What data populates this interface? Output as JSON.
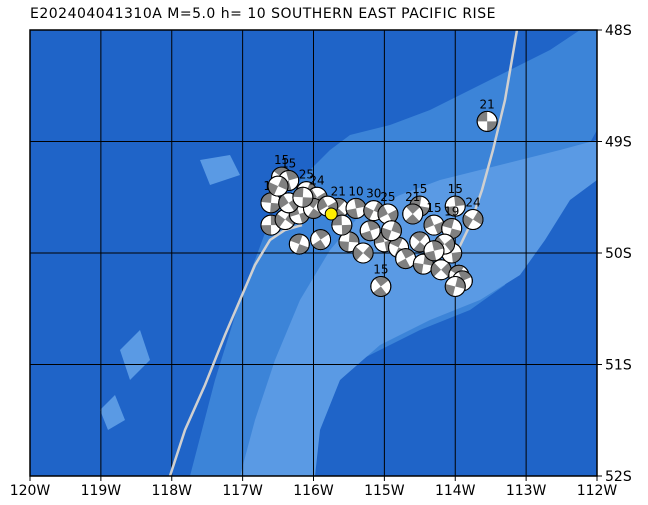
{
  "title": "E202404041310A M=5.0 h= 10 SOUTHERN EAST PACIFIC RISE",
  "map": {
    "lon_range": [
      -120,
      -112
    ],
    "lat_range": [
      -52,
      -48
    ],
    "x_ticks": [
      "120W",
      "119W",
      "118W",
      "117W",
      "116W",
      "115W",
      "114W",
      "113W",
      "112W"
    ],
    "y_ticks": [
      "48S",
      "49S",
      "50S",
      "51S",
      "52S"
    ],
    "colors": {
      "deep_ocean": "#1f64c8",
      "ridge": "#3c84d8",
      "crest": "#5a9ae4",
      "grid": "#000000",
      "plate_boundary": "#d0d0d0",
      "mechanism_dark": "#808080",
      "mechanism_light": "#ffffff",
      "epicenter": "#ffee00"
    }
  },
  "event": {
    "lon": -115.75,
    "lat": -49.65
  },
  "mechanisms": [
    {
      "lon": -113.55,
      "lat": -48.82,
      "label": "21"
    },
    {
      "lon": -116.45,
      "lat": -49.32,
      "label": "15"
    },
    {
      "lon": -116.35,
      "lat": -49.35,
      "label": "15"
    },
    {
      "lon": -116.1,
      "lat": -49.45,
      "label": "25"
    },
    {
      "lon": -115.95,
      "lat": -49.5,
      "label": "24"
    },
    {
      "lon": -116.6,
      "lat": -49.55,
      "label": "13"
    },
    {
      "lon": -115.65,
      "lat": -49.6,
      "label": "21"
    },
    {
      "lon": -115.4,
      "lat": -49.6,
      "label": "10"
    },
    {
      "lon": -115.15,
      "lat": -49.62,
      "label": "30"
    },
    {
      "lon": -114.95,
      "lat": -49.65,
      "label": "25"
    },
    {
      "lon": -114.5,
      "lat": -49.58,
      "label": "15"
    },
    {
      "lon": -114.6,
      "lat": -49.65,
      "label": "21"
    },
    {
      "lon": -114.0,
      "lat": -49.58,
      "label": "15"
    },
    {
      "lon": -113.75,
      "lat": -49.7,
      "label": "24"
    },
    {
      "lon": -114.3,
      "lat": -49.75,
      "label": "15"
    },
    {
      "lon": -114.05,
      "lat": -49.78,
      "label": "19"
    },
    {
      "lon": -115.05,
      "lat": -50.3,
      "label": "15"
    },
    {
      "lon": -116.6,
      "lat": -49.75,
      "label": ""
    },
    {
      "lon": -116.4,
      "lat": -49.7,
      "label": ""
    },
    {
      "lon": -116.2,
      "lat": -49.65,
      "label": ""
    },
    {
      "lon": -116.2,
      "lat": -49.92,
      "label": ""
    },
    {
      "lon": -115.9,
      "lat": -49.88,
      "label": ""
    },
    {
      "lon": -115.5,
      "lat": -49.9,
      "label": ""
    },
    {
      "lon": -115.3,
      "lat": -50.0,
      "label": ""
    },
    {
      "lon": -115.0,
      "lat": -49.9,
      "label": ""
    },
    {
      "lon": -114.8,
      "lat": -49.95,
      "label": ""
    },
    {
      "lon": -114.7,
      "lat": -50.05,
      "label": ""
    },
    {
      "lon": -114.45,
      "lat": -50.1,
      "label": ""
    },
    {
      "lon": -114.2,
      "lat": -50.15,
      "label": ""
    },
    {
      "lon": -114.05,
      "lat": -50.0,
      "label": ""
    },
    {
      "lon": -113.95,
      "lat": -50.2,
      "label": ""
    },
    {
      "lon": -113.9,
      "lat": -50.25,
      "label": ""
    },
    {
      "lon": -114.0,
      "lat": -50.3,
      "label": ""
    },
    {
      "lon": -114.15,
      "lat": -49.92,
      "label": ""
    },
    {
      "lon": -115.6,
      "lat": -49.75,
      "label": ""
    },
    {
      "lon": -116.0,
      "lat": -49.6,
      "label": ""
    },
    {
      "lon": -115.2,
      "lat": -49.8,
      "label": ""
    },
    {
      "lon": -114.9,
      "lat": -49.8,
      "label": ""
    },
    {
      "lon": -116.35,
      "lat": -49.55,
      "label": ""
    },
    {
      "lon": -116.15,
      "lat": -49.5,
      "label": ""
    },
    {
      "lon": -114.5,
      "lat": -49.9,
      "label": ""
    },
    {
      "lon": -114.3,
      "lat": -49.98,
      "label": ""
    },
    {
      "lon": -116.5,
      "lat": -49.4,
      "label": ""
    },
    {
      "lon": -115.8,
      "lat": -49.58,
      "label": ""
    }
  ]
}
